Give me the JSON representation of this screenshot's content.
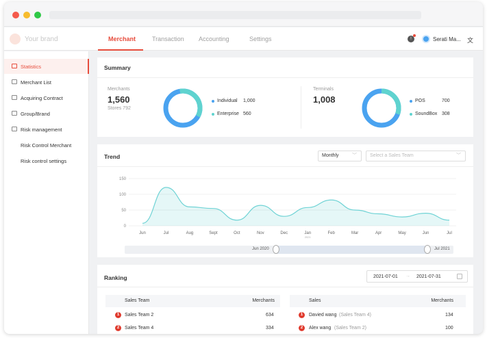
{
  "header": {
    "brand": "Your brand",
    "tabs": [
      "Merchant",
      "Transaction",
      "Accounting",
      "Settings"
    ],
    "username": "Serati Ma...",
    "lang_icon": "translate-icon",
    "accent": "#e74c3c"
  },
  "sidebar": {
    "items": [
      {
        "label": "Statistics",
        "icon": "chart-icon"
      },
      {
        "label": "Merchant List",
        "icon": "list-icon"
      },
      {
        "label": "Acquiring Contract",
        "icon": "contract-icon"
      },
      {
        "label": "Group/Brand",
        "icon": "group-icon"
      },
      {
        "label": "Risk management",
        "icon": "risk-icon"
      },
      {
        "label": "Risk Control Merchant"
      },
      {
        "label": "Risk control settings"
      }
    ]
  },
  "summary": {
    "title": "Summary",
    "merchants_label": "Merchants",
    "merchants_value": "1,560",
    "stores_text": "Stores 792",
    "individual_label": "Individual",
    "individual_value": "1,000",
    "enterprise_label": "Enterprise",
    "enterprise_value": "560",
    "terminals_label": "Terminals",
    "terminals_value": "1,008",
    "pos_label": "POS",
    "pos_value": "700",
    "soundbox_label": "SoundBox",
    "soundbox_value": "308",
    "colors": {
      "primary": "#4aa3f0",
      "secondary": "#5fd3cf"
    }
  },
  "trend": {
    "title": "Trend",
    "period_select": "Monthly",
    "team_placeholder": "Select a Sales Team",
    "range_start": "Jun 2020",
    "range_end": "Jul 2021"
  },
  "chart_data": {
    "type": "area",
    "categories": [
      "Jun",
      "Jul",
      "Aug",
      "Sept",
      "Oct",
      "Nov",
      "Dec",
      "Jan",
      "Feb",
      "Mar",
      "Apr",
      "May",
      "Jun",
      "Jul"
    ],
    "category_sublabels": {
      "Jan": "2021"
    },
    "values": [
      8,
      122,
      60,
      55,
      18,
      65,
      30,
      58,
      82,
      50,
      38,
      28,
      40,
      18
    ],
    "yticks": [
      0,
      50,
      100,
      150
    ],
    "ylim": [
      0,
      150
    ],
    "color": "#6fd3d5"
  },
  "ranking": {
    "title": "Ranking",
    "date_start": "2021-07-01",
    "date_end": "2021-07-31",
    "left_table": {
      "headers": [
        "Sales Team",
        "Merchants"
      ],
      "rows": [
        {
          "rank": "1",
          "name": "Sales Team 2",
          "value": "634"
        },
        {
          "rank": "2",
          "name": "Sales Team 4",
          "value": "334"
        }
      ]
    },
    "right_table": {
      "headers": [
        "Sales",
        "Merchants"
      ],
      "rows": [
        {
          "rank": "1",
          "name": "Davied wang",
          "team": "(Sales Team 4)",
          "value": "134"
        },
        {
          "rank": "2",
          "name": "Alex wang",
          "team": "(Sales Team 2)",
          "value": "100"
        }
      ]
    }
  }
}
